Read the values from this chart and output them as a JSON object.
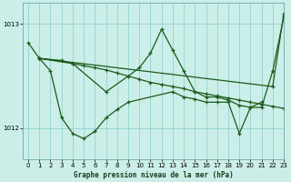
{
  "title": "Graphe pression niveau de la mer (hPa)",
  "background_color": "#cceee8",
  "line_color": "#1a5c1a",
  "grid_color": "#88cccc",
  "xlim": [
    -0.5,
    23
  ],
  "ylim": [
    1011.7,
    1013.2
  ],
  "yticks": [
    1012,
    1013
  ],
  "xticks": [
    0,
    1,
    2,
    3,
    4,
    5,
    6,
    7,
    8,
    9,
    10,
    11,
    12,
    13,
    14,
    15,
    16,
    17,
    18,
    19,
    20,
    21,
    22,
    23
  ],
  "series": [
    {
      "x": [
        0,
        1,
        3,
        4,
        5,
        6,
        7,
        8,
        9,
        10,
        11,
        12,
        13,
        14,
        15,
        16,
        17,
        18,
        19,
        20,
        21,
        22,
        23
      ],
      "y": [
        1012.82,
        1012.67,
        1012.65,
        1012.62,
        1012.6,
        1012.58,
        1012.56,
        1012.53,
        1012.5,
        1012.47,
        1012.44,
        1012.42,
        1012.4,
        1012.38,
        1012.35,
        1012.33,
        1012.31,
        1012.29,
        1012.27,
        1012.25,
        1012.23,
        1012.21,
        1012.19
      ]
    },
    {
      "x": [
        1,
        2,
        3,
        4,
        5,
        6,
        7,
        8,
        9,
        13,
        14,
        15,
        16,
        17,
        18,
        19,
        20,
        21
      ],
      "y": [
        1012.67,
        1012.55,
        1012.1,
        1011.95,
        1011.9,
        1011.97,
        1012.1,
        1012.18,
        1012.25,
        1012.35,
        1012.3,
        1012.28,
        1012.25,
        1012.25,
        1012.25,
        1011.95,
        1012.2,
        1012.25
      ]
    },
    {
      "x": [
        1,
        4,
        7,
        9,
        10,
        11,
        12,
        13,
        14,
        15,
        16,
        17,
        18,
        19,
        20,
        21,
        22,
        23
      ],
      "y": [
        1012.67,
        1012.62,
        1012.35,
        1012.5,
        1012.58,
        1012.72,
        1012.95,
        1012.75,
        1012.55,
        1012.35,
        1012.3,
        1012.3,
        1012.27,
        1012.22,
        1012.2,
        1012.2,
        1012.55,
        1013.07
      ]
    },
    {
      "x": [
        1,
        22,
        23
      ],
      "y": [
        1012.67,
        1012.4,
        1013.1
      ]
    }
  ]
}
